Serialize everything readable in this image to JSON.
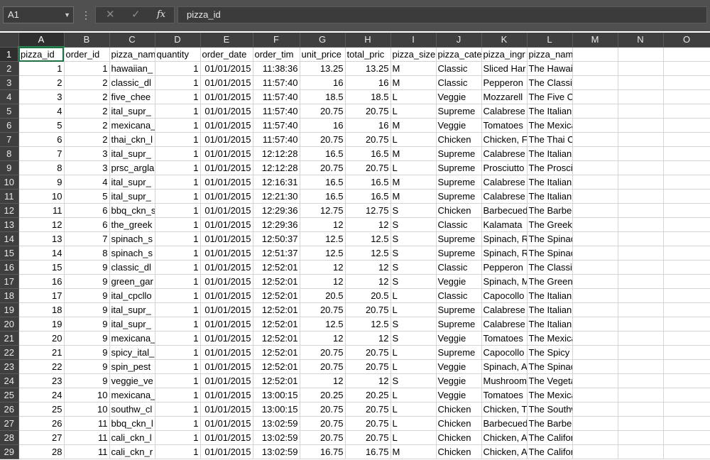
{
  "formula_bar": {
    "name_box": "A1",
    "formula": "pizza_id"
  },
  "columns": [
    "A",
    "B",
    "C",
    "D",
    "E",
    "F",
    "G",
    "H",
    "I",
    "J",
    "K",
    "L",
    "M",
    "N",
    "O"
  ],
  "headers": [
    "pizza_id",
    "order_id",
    "pizza_nam",
    "quantity",
    "order_date",
    "order_tim",
    "unit_price",
    "total_pric",
    "pizza_size",
    "pizza_cate",
    "pizza_ingr",
    "pizza_name"
  ],
  "rows": [
    [
      "1",
      "1",
      "hawaiian_",
      "1",
      "01/01/2015",
      "11:38:36",
      "13.25",
      "13.25",
      "M",
      "Classic",
      "Sliced Har",
      "The Hawaiian Pizza"
    ],
    [
      "2",
      "2",
      "classic_dl",
      "1",
      "01/01/2015",
      "11:57:40",
      "16",
      "16",
      "M",
      "Classic",
      "Pepperon",
      "The Classic Deluxe Pizza"
    ],
    [
      "3",
      "2",
      "five_chee",
      "1",
      "01/01/2015",
      "11:57:40",
      "18.5",
      "18.5",
      "L",
      "Veggie",
      "Mozzarell",
      "The Five Cheese Pizza"
    ],
    [
      "4",
      "2",
      "ital_supr_",
      "1",
      "01/01/2015",
      "11:57:40",
      "20.75",
      "20.75",
      "L",
      "Supreme",
      "Calabrese",
      "The Italian Supreme Pizza"
    ],
    [
      "5",
      "2",
      "mexicana_",
      "1",
      "01/01/2015",
      "11:57:40",
      "16",
      "16",
      "M",
      "Veggie",
      "Tomatoes",
      "The Mexicana Pizza"
    ],
    [
      "6",
      "2",
      "thai_ckn_l",
      "1",
      "01/01/2015",
      "11:57:40",
      "20.75",
      "20.75",
      "L",
      "Chicken",
      "Chicken, F",
      "The Thai Chicken Pizza"
    ],
    [
      "7",
      "3",
      "ital_supr_",
      "1",
      "01/01/2015",
      "12:12:28",
      "16.5",
      "16.5",
      "M",
      "Supreme",
      "Calabrese",
      "The Italian Supreme Pizza"
    ],
    [
      "8",
      "3",
      "prsc_argla",
      "1",
      "01/01/2015",
      "12:12:28",
      "20.75",
      "20.75",
      "L",
      "Supreme",
      "Prosciutto",
      "The Prosciutto and Arugula Pizza"
    ],
    [
      "9",
      "4",
      "ital_supr_",
      "1",
      "01/01/2015",
      "12:16:31",
      "16.5",
      "16.5",
      "M",
      "Supreme",
      "Calabrese",
      "The Italian Supreme Pizza"
    ],
    [
      "10",
      "5",
      "ital_supr_",
      "1",
      "01/01/2015",
      "12:21:30",
      "16.5",
      "16.5",
      "M",
      "Supreme",
      "Calabrese",
      "The Italian Supreme Pizza"
    ],
    [
      "11",
      "6",
      "bbq_ckn_s",
      "1",
      "01/01/2015",
      "12:29:36",
      "12.75",
      "12.75",
      "S",
      "Chicken",
      "Barbecued",
      "The Barbecue Chicken Pizza"
    ],
    [
      "12",
      "6",
      "the_greek",
      "1",
      "01/01/2015",
      "12:29:36",
      "12",
      "12",
      "S",
      "Classic",
      "Kalamata",
      "The Greek Pizza"
    ],
    [
      "13",
      "7",
      "spinach_s",
      "1",
      "01/01/2015",
      "12:50:37",
      "12.5",
      "12.5",
      "S",
      "Supreme",
      "Spinach, R",
      "The Spinach Supreme Pizza"
    ],
    [
      "14",
      "8",
      "spinach_s",
      "1",
      "01/01/2015",
      "12:51:37",
      "12.5",
      "12.5",
      "S",
      "Supreme",
      "Spinach, R",
      "The Spinach Supreme Pizza"
    ],
    [
      "15",
      "9",
      "classic_dl",
      "1",
      "01/01/2015",
      "12:52:01",
      "12",
      "12",
      "S",
      "Classic",
      "Pepperon",
      "The Classic Deluxe Pizza"
    ],
    [
      "16",
      "9",
      "green_gar",
      "1",
      "01/01/2015",
      "12:52:01",
      "12",
      "12",
      "S",
      "Veggie",
      "Spinach, M",
      "The Green Garden Pizza"
    ],
    [
      "17",
      "9",
      "ital_cpcllo",
      "1",
      "01/01/2015",
      "12:52:01",
      "20.5",
      "20.5",
      "L",
      "Classic",
      "Capocollo",
      "The Italian Capocollo Pizza"
    ],
    [
      "18",
      "9",
      "ital_supr_",
      "1",
      "01/01/2015",
      "12:52:01",
      "20.75",
      "20.75",
      "L",
      "Supreme",
      "Calabrese",
      "The Italian Supreme Pizza"
    ],
    [
      "19",
      "9",
      "ital_supr_",
      "1",
      "01/01/2015",
      "12:52:01",
      "12.5",
      "12.5",
      "S",
      "Supreme",
      "Calabrese",
      "The Italian Supreme Pizza"
    ],
    [
      "20",
      "9",
      "mexicana_",
      "1",
      "01/01/2015",
      "12:52:01",
      "12",
      "12",
      "S",
      "Veggie",
      "Tomatoes",
      "The Mexicana Pizza"
    ],
    [
      "21",
      "9",
      "spicy_ital_",
      "1",
      "01/01/2015",
      "12:52:01",
      "20.75",
      "20.75",
      "L",
      "Supreme",
      "Capocollo",
      "The Spicy Italian Pizza"
    ],
    [
      "22",
      "9",
      "spin_pest",
      "1",
      "01/01/2015",
      "12:52:01",
      "20.75",
      "20.75",
      "L",
      "Veggie",
      "Spinach, A",
      "The Spinach Pesto Pizza"
    ],
    [
      "23",
      "9",
      "veggie_ve",
      "1",
      "01/01/2015",
      "12:52:01",
      "12",
      "12",
      "S",
      "Veggie",
      "Mushroom",
      "The Vegetables + Vegetables Pizza"
    ],
    [
      "24",
      "10",
      "mexicana_",
      "1",
      "01/01/2015",
      "13:00:15",
      "20.25",
      "20.25",
      "L",
      "Veggie",
      "Tomatoes",
      "The Mexicana Pizza"
    ],
    [
      "25",
      "10",
      "southw_cl",
      "1",
      "01/01/2015",
      "13:00:15",
      "20.75",
      "20.75",
      "L",
      "Chicken",
      "Chicken, T",
      "The Southwest Chicken Pizza"
    ],
    [
      "26",
      "11",
      "bbq_ckn_l",
      "1",
      "01/01/2015",
      "13:02:59",
      "20.75",
      "20.75",
      "L",
      "Chicken",
      "Barbecued",
      "The Barbecue Chicken Pizza"
    ],
    [
      "27",
      "11",
      "cali_ckn_l",
      "1",
      "01/01/2015",
      "13:02:59",
      "20.75",
      "20.75",
      "L",
      "Chicken",
      "Chicken, A",
      "The California Chicken Pizza"
    ],
    [
      "28",
      "11",
      "cali_ckn_r",
      "1",
      "01/01/2015",
      "13:02:59",
      "16.75",
      "16.75",
      "M",
      "Chicken",
      "Chicken, A",
      "The California Chicken Pizza"
    ]
  ]
}
